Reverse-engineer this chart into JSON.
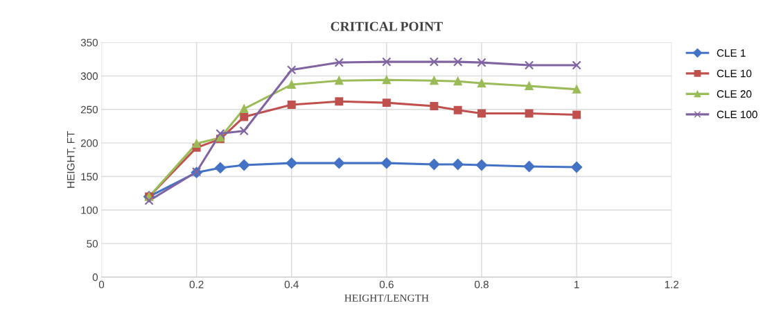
{
  "chart_data": {
    "type": "line",
    "title": "CRITICAL POINT",
    "xlabel": "HEIGHT/LENGTH",
    "ylabel": "HEIGHT, FT",
    "x": [
      0.1,
      0.2,
      0.25,
      0.3,
      0.4,
      0.5,
      0.6,
      0.7,
      0.75,
      0.8,
      0.9,
      1
    ],
    "series": [
      {
        "name": "CLE 1",
        "color": "#4472c4",
        "marker": "diamond",
        "values": [
          120,
          156,
          163,
          167,
          170,
          170,
          170,
          168,
          168,
          167,
          165,
          164
        ]
      },
      {
        "name": "CLE 10",
        "color": "#c0504d",
        "marker": "square",
        "values": [
          120,
          193,
          206,
          239,
          257,
          262,
          260,
          255,
          249,
          244,
          244,
          242
        ]
      },
      {
        "name": "CLE 20",
        "color": "#9bbb59",
        "marker": "triangle",
        "values": [
          120,
          199,
          208,
          251,
          287,
          293,
          294,
          293,
          292,
          289,
          285,
          280
        ]
      },
      {
        "name": "CLE 100",
        "color": "#8064a2",
        "marker": "cross",
        "values": [
          114,
          157,
          214,
          218,
          309,
          320,
          321,
          321,
          321,
          320,
          316,
          316
        ]
      }
    ],
    "xlim": [
      0,
      1.2
    ],
    "xticks": [
      0,
      0.2,
      0.4,
      0.6,
      0.8,
      1,
      1.2
    ],
    "ylim": [
      0,
      350
    ],
    "yticks": [
      0,
      50,
      100,
      150,
      200,
      250,
      300,
      350
    ],
    "grid": true,
    "legend": "right",
    "line_style": "solid"
  }
}
